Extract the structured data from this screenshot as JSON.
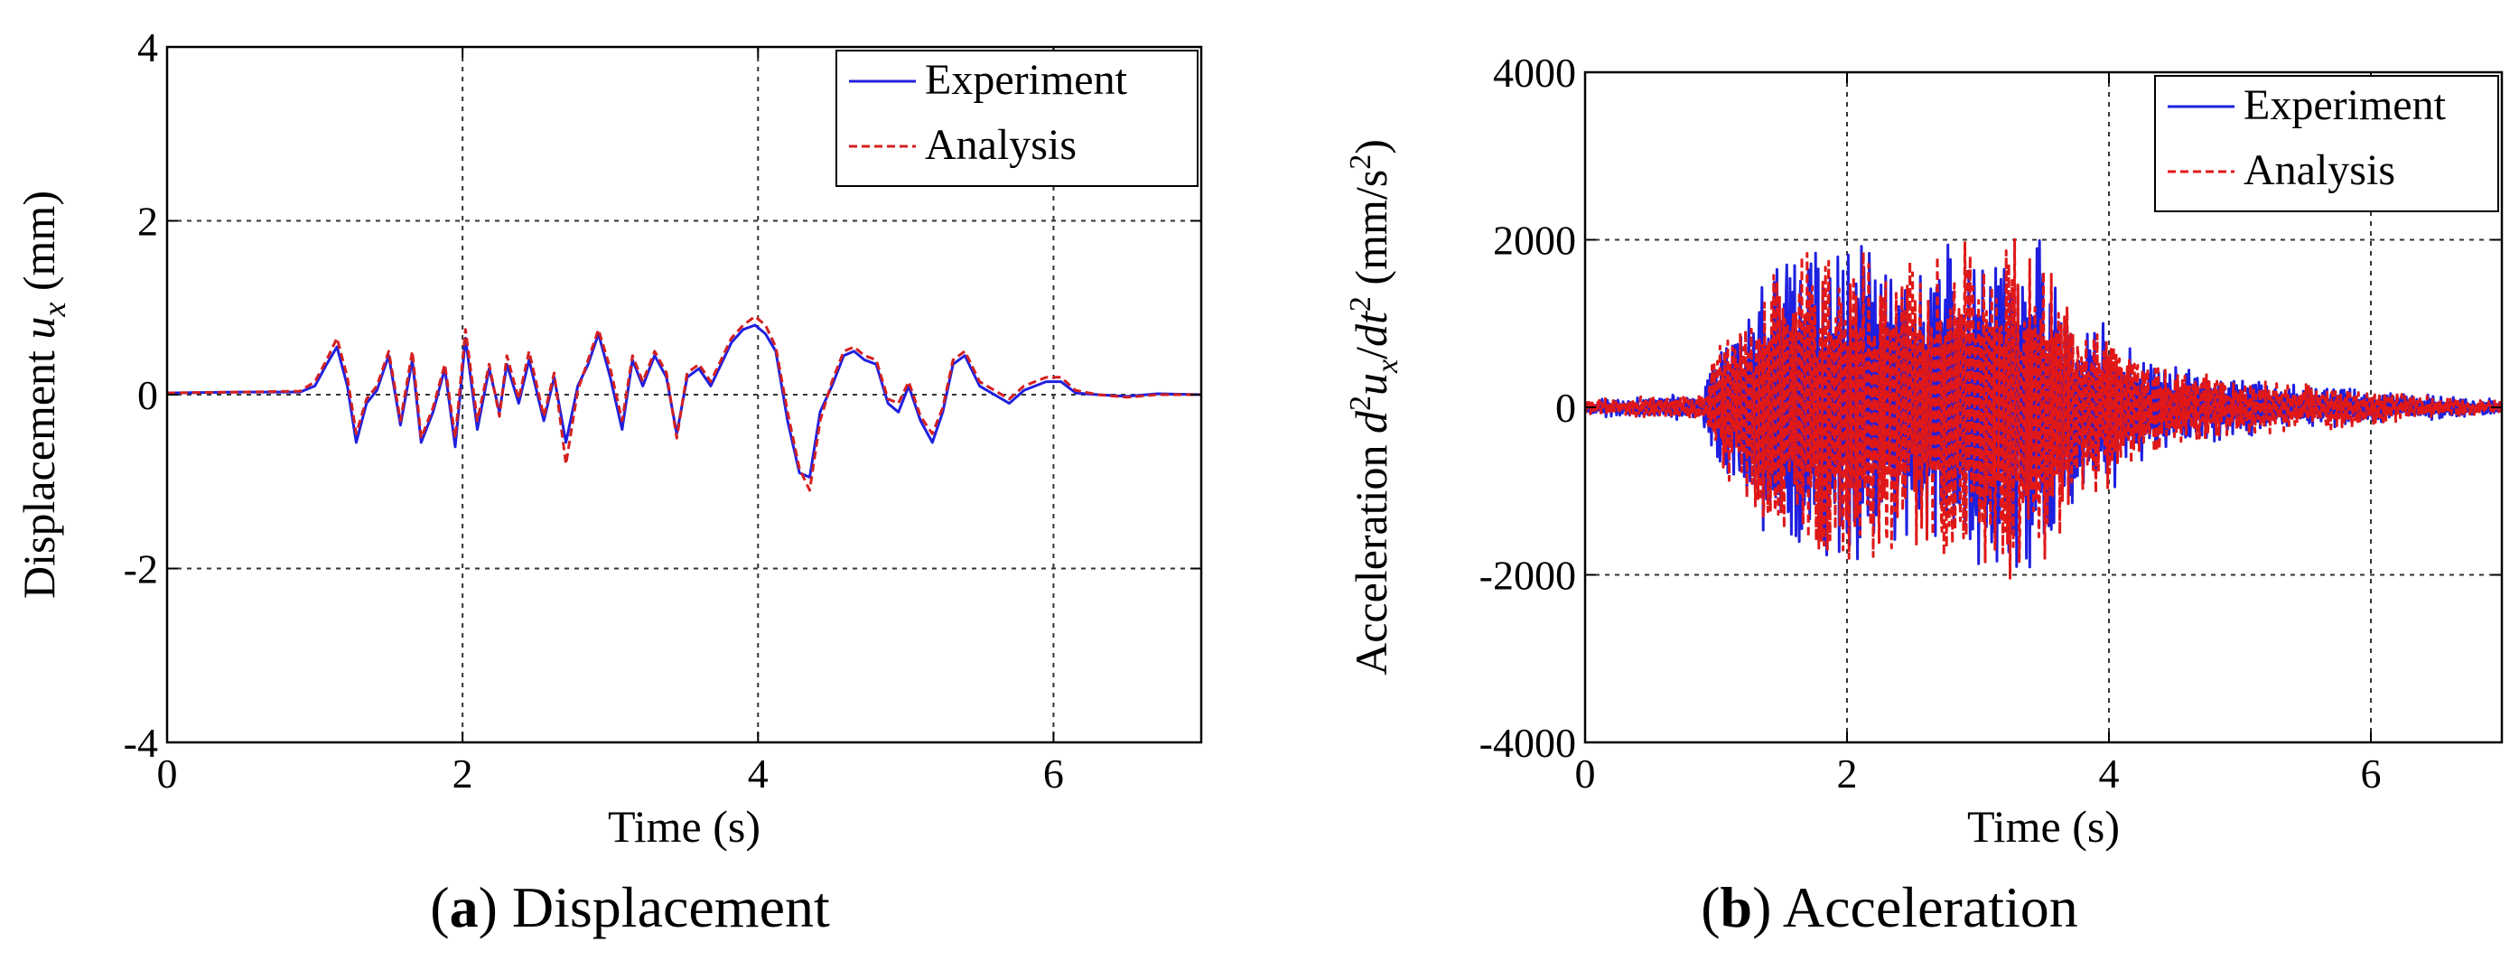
{
  "chart_data": [
    {
      "id": "a",
      "type": "line",
      "caption_letter": "a",
      "caption_text": " Displacement",
      "xlabel": "Time (s)",
      "ylabel_parts": {
        "text": "Displacement ",
        "var": "u",
        "sub": "x",
        "unit": " (mm)"
      },
      "xlim": [
        0,
        7
      ],
      "ylim": [
        -4,
        4
      ],
      "xticks": [
        0,
        2,
        4,
        6
      ],
      "xtick_labels": [
        "0",
        "2",
        "4",
        "6"
      ],
      "yticks": [
        -4,
        -2,
        0,
        2,
        4
      ],
      "ytick_labels": [
        "-4",
        "-2",
        "0",
        "2",
        "4"
      ],
      "grid": true,
      "legend_position": "top-right",
      "series": [
        {
          "name": "Experiment",
          "color": "#1f1fe0",
          "style": "solid",
          "x": [
            0,
            0.5,
            0.9,
            1.0,
            1.08,
            1.15,
            1.22,
            1.28,
            1.35,
            1.42,
            1.5,
            1.58,
            1.66,
            1.72,
            1.8,
            1.88,
            1.95,
            2.02,
            2.1,
            2.18,
            2.25,
            2.3,
            2.38,
            2.45,
            2.55,
            2.62,
            2.7,
            2.78,
            2.85,
            2.92,
            3.0,
            3.08,
            3.15,
            3.22,
            3.3,
            3.38,
            3.45,
            3.52,
            3.6,
            3.68,
            3.75,
            3.82,
            3.9,
            3.98,
            4.05,
            4.12,
            4.2,
            4.28,
            4.35,
            4.42,
            4.5,
            4.58,
            4.65,
            4.72,
            4.8,
            4.88,
            4.95,
            5.02,
            5.1,
            5.18,
            5.25,
            5.32,
            5.4,
            5.5,
            5.6,
            5.7,
            5.8,
            5.95,
            6.05,
            6.15,
            6.3,
            6.5,
            6.7,
            7.0
          ],
          "y": [
            0.02,
            0.03,
            0.03,
            0.1,
            0.35,
            0.55,
            0.1,
            -0.55,
            -0.1,
            0.05,
            0.45,
            -0.35,
            0.4,
            -0.55,
            -0.2,
            0.3,
            -0.6,
            0.65,
            -0.4,
            0.3,
            -0.2,
            0.35,
            -0.1,
            0.4,
            -0.3,
            0.2,
            -0.55,
            0.1,
            0.35,
            0.7,
            0.2,
            -0.4,
            0.4,
            0.1,
            0.45,
            0.2,
            -0.45,
            0.2,
            0.3,
            0.1,
            0.35,
            0.6,
            0.75,
            0.8,
            0.7,
            0.5,
            -0.3,
            -0.9,
            -0.95,
            -0.2,
            0.1,
            0.45,
            0.5,
            0.4,
            0.35,
            -0.1,
            -0.2,
            0.1,
            -0.3,
            -0.55,
            -0.2,
            0.35,
            0.45,
            0.1,
            0.0,
            -0.1,
            0.05,
            0.15,
            0.15,
            0.02,
            0.0,
            -0.02,
            0.01,
            0.0
          ]
        },
        {
          "name": "Analysis",
          "color": "#d42020",
          "style": "dashed",
          "x": [
            0,
            0.5,
            0.9,
            1.0,
            1.08,
            1.15,
            1.22,
            1.28,
            1.35,
            1.42,
            1.5,
            1.58,
            1.66,
            1.72,
            1.8,
            1.88,
            1.95,
            2.02,
            2.1,
            2.18,
            2.25,
            2.3,
            2.38,
            2.45,
            2.55,
            2.62,
            2.7,
            2.78,
            2.85,
            2.92,
            3.0,
            3.08,
            3.15,
            3.22,
            3.3,
            3.38,
            3.45,
            3.52,
            3.6,
            3.68,
            3.75,
            3.82,
            3.9,
            3.98,
            4.05,
            4.12,
            4.2,
            4.28,
            4.35,
            4.42,
            4.5,
            4.58,
            4.65,
            4.72,
            4.8,
            4.88,
            4.95,
            5.02,
            5.1,
            5.18,
            5.25,
            5.32,
            5.4,
            5.5,
            5.6,
            5.7,
            5.8,
            5.95,
            6.05,
            6.15,
            6.3,
            6.5,
            6.7,
            7.0
          ],
          "y": [
            0.02,
            0.03,
            0.04,
            0.15,
            0.4,
            0.65,
            0.2,
            -0.45,
            -0.05,
            0.1,
            0.5,
            -0.3,
            0.5,
            -0.5,
            -0.15,
            0.35,
            -0.5,
            0.75,
            -0.3,
            0.35,
            -0.25,
            0.45,
            -0.05,
            0.5,
            -0.25,
            0.25,
            -0.8,
            0.05,
            0.4,
            0.75,
            0.3,
            -0.3,
            0.45,
            0.15,
            0.5,
            0.25,
            -0.5,
            0.25,
            0.35,
            0.15,
            0.4,
            0.65,
            0.8,
            0.9,
            0.8,
            0.55,
            -0.2,
            -0.85,
            -1.1,
            -0.3,
            0.15,
            0.5,
            0.55,
            0.45,
            0.4,
            -0.05,
            -0.1,
            0.15,
            -0.25,
            -0.45,
            -0.15,
            0.4,
            0.5,
            0.15,
            0.05,
            -0.05,
            0.1,
            0.2,
            0.2,
            0.05,
            0.0,
            -0.03,
            0.0,
            0.0
          ]
        }
      ]
    },
    {
      "id": "b",
      "type": "line",
      "caption_letter": "b",
      "caption_text": " Acceleration",
      "xlabel": "Time (s)",
      "ylabel_parts": {
        "text": "Acceleration ",
        "d2": "d",
        "sup2": "2",
        "var": "u",
        "sub": "x",
        "slash": "/",
        "dt": "dt",
        "sup2b": "2",
        "unit_open": " (mm/s",
        "unit_sup": "2",
        "unit_close": ")"
      },
      "xlim": [
        0,
        7
      ],
      "ylim": [
        -4000,
        4000
      ],
      "xticks": [
        0,
        2,
        4,
        6
      ],
      "xtick_labels": [
        "0",
        "2",
        "4",
        "6"
      ],
      "yticks": [
        -4000,
        -2000,
        0,
        2000,
        4000
      ],
      "ytick_labels": [
        "-4000",
        "-2000",
        "0",
        "2000",
        "4000"
      ],
      "grid": true,
      "legend_position": "top-right",
      "envelope": [
        [
          0,
          80
        ],
        [
          0.9,
          150
        ],
        [
          1.0,
          800
        ],
        [
          1.2,
          1100
        ],
        [
          1.45,
          1800
        ],
        [
          1.7,
          2000
        ],
        [
          2.0,
          2050
        ],
        [
          2.3,
          1900
        ],
        [
          2.6,
          1800
        ],
        [
          2.9,
          2100
        ],
        [
          3.1,
          1900
        ],
        [
          3.4,
          2250
        ],
        [
          3.6,
          1600
        ],
        [
          3.8,
          1100
        ],
        [
          4.0,
          1000
        ],
        [
          4.3,
          600
        ],
        [
          4.6,
          450
        ],
        [
          5.0,
          350
        ],
        [
          5.5,
          300
        ],
        [
          6.0,
          200
        ],
        [
          6.5,
          120
        ],
        [
          7.0,
          80
        ]
      ],
      "series": [
        {
          "name": "Experiment",
          "color": "#1f1fe0",
          "style": "solid",
          "samples": 1400,
          "seed": 17
        },
        {
          "name": "Analysis",
          "color": "#e01818",
          "style": "dashed",
          "samples": 1400,
          "seed": 41
        }
      ]
    }
  ]
}
